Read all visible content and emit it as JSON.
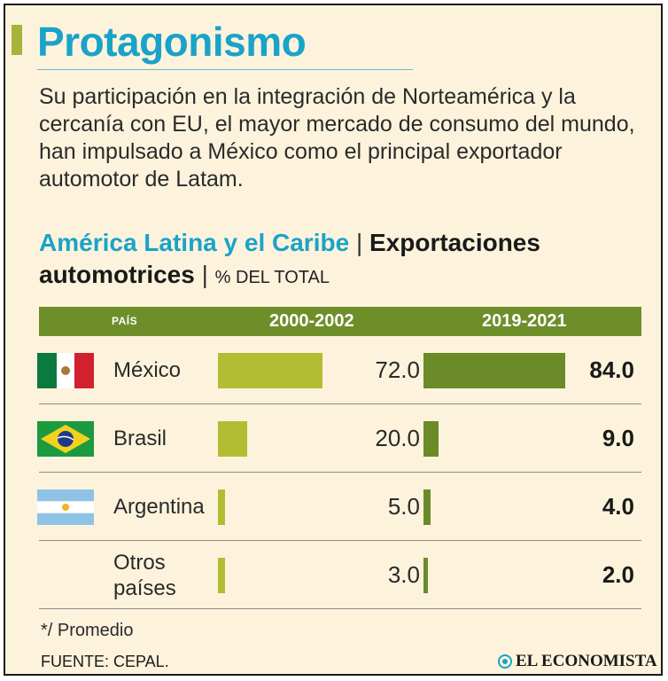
{
  "title": "Protagonismo",
  "intro": "Su participación en la integración de Norteamérica y la cercanía con EU, el mayor mercado de consumo del mundo, han impulsado a México como el principal exportador automotor de Latam.",
  "subtitle": {
    "region": "América Latina y el Caribe",
    "separator": "|",
    "metric": "Exportaciones automotrices",
    "unit": "% DEL TOTAL"
  },
  "colors": {
    "title": "#1aa3c8",
    "header_bg": "#6e8e2a",
    "bar_2000_2002": "#b1bd33",
    "bar_2019_2021": "#6b8a28",
    "background": "#fdf3dd"
  },
  "chart_data": {
    "type": "bar",
    "orientation": "horizontal",
    "title": "América Latina y el Caribe | Exportaciones automotrices",
    "ylabel": "% DEL TOTAL",
    "category_header": "PAÍS",
    "categories": [
      "México",
      "Brasil",
      "Argentina",
      "Otros países"
    ],
    "series": [
      {
        "name": "2000-2002",
        "values": [
          72.0,
          20.0,
          5.0,
          3.0
        ],
        "labels": [
          "72.0",
          "20.0",
          "5.0",
          "3.0"
        ]
      },
      {
        "name": "2019-2021",
        "values": [
          84.0,
          9.0,
          4.0,
          2.0
        ],
        "labels": [
          "84.0",
          "9.0",
          "4.0",
          "2.0"
        ]
      }
    ],
    "xlim": [
      0,
      84
    ]
  },
  "country_lines": [
    [
      "México"
    ],
    [
      "Brasil"
    ],
    [
      "Argentina"
    ],
    [
      "Otros",
      "países"
    ]
  ],
  "flags": [
    "mexico-flag-icon",
    "brazil-flag-icon",
    "argentina-flag-icon",
    null
  ],
  "footnote": "*/ Promedio",
  "source": "FUENTE: CEPAL.",
  "brand": "EL ECONOMISTA"
}
